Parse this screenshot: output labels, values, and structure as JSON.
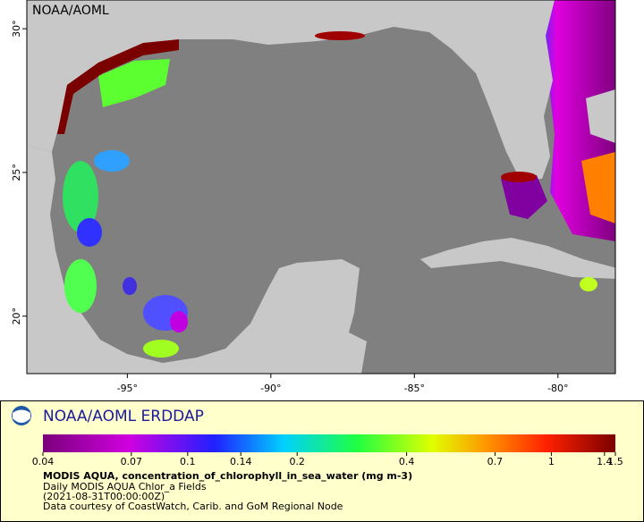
{
  "map": {
    "watermark": "NOAA/AOML",
    "xlim": [
      -98.5,
      -78
    ],
    "ylim": [
      18,
      31
    ],
    "lon_ticks": [
      {
        "value": -95,
        "label": "-95°"
      },
      {
        "value": -90,
        "label": "-90°"
      },
      {
        "value": -85,
        "label": "-85°"
      },
      {
        "value": -80,
        "label": "-80°"
      }
    ],
    "lat_ticks": [
      {
        "value": 30,
        "label": "30°"
      },
      {
        "value": 25,
        "label": "25°"
      },
      {
        "value": 20,
        "label": "20°"
      }
    ]
  },
  "legend": {
    "title": "NOAA/AOML ERDDAP",
    "colorbar": {
      "range": [
        0.04,
        1.5
      ],
      "log": true,
      "ticks": [
        0.04,
        0.07,
        0.1,
        0.14,
        0.2,
        0.4,
        0.7,
        1,
        1.4,
        1.5
      ]
    },
    "variable": "MODIS AQUA, concentration_of_chlorophyll_in_sea_water (mg m-3)",
    "subtitle": "Daily MODIS AQUA Chlor_a Fields",
    "time": "(2021-08-31T00:00:00Z)",
    "credit": "Data courtesy of CoastWatch, Carib. and GoM Regional Node"
  }
}
